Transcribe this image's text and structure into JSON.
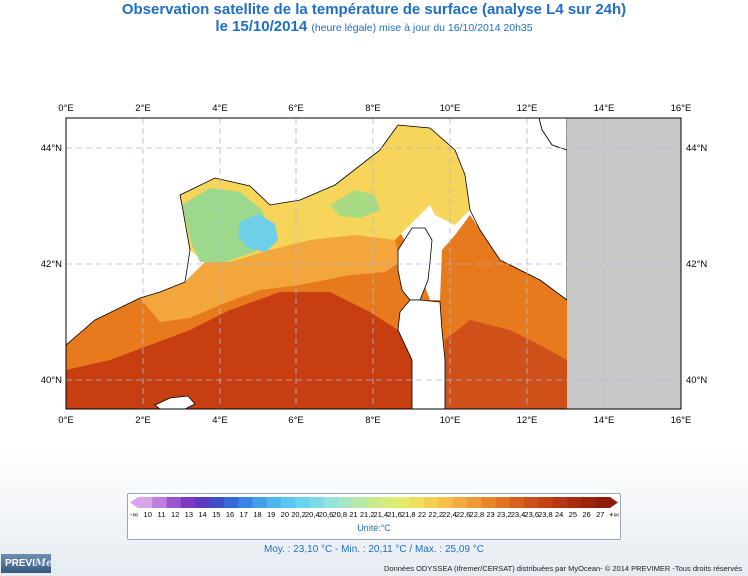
{
  "header": {
    "title": "Observation satellite de la température de surface (analyse L4 sur 24h)",
    "date_prefix": "le 15/10/2014",
    "date_note": "(heure légale) mise à jour du 16/10/2014 20h35"
  },
  "map": {
    "lon_labels": [
      "0°E",
      "2°E",
      "4°E",
      "6°E",
      "8°E",
      "10°E",
      "12°E",
      "14°E",
      "16°E"
    ],
    "lat_labels": [
      "40°N",
      "42°N",
      "44°N"
    ],
    "colors": {
      "land": "#c8c8c8",
      "title": "#1f6fc4",
      "sst_warmest": "#c23a0e",
      "sst_warm": "#e0741c",
      "sst_mid": "#f2a53a",
      "sst_cool": "#f7d75a",
      "sst_cold": "#9bd98a",
      "sst_coldest": "#6fcfe8"
    }
  },
  "legend": {
    "labels": [
      "-∞",
      "10",
      "11",
      "12",
      "13",
      "14",
      "15",
      "16",
      "17",
      "18",
      "19",
      "20",
      "20,2",
      "20,4",
      "20,6",
      "20,8",
      "21",
      "21,2",
      "21,4",
      "21,6",
      "21,8",
      "22",
      "22,2",
      "22,4",
      "22,6",
      "22,8",
      "23",
      "23,2",
      "23,4",
      "23,6",
      "23,8",
      "24",
      "25",
      "26",
      "27",
      "+∞"
    ],
    "unit": "Unité:°C"
  },
  "stats": "Moy. : 23,10 °C  -  Min. : 20,11 °C / Max. : 25,09 °C",
  "logo": {
    "a": "PREVI",
    "b": "Mer"
  },
  "credits": "Données ODYSSEA (Ifremer/CERSAT) distribuées par MyOcean- © 2014 PREVIMER -Tous droits réservés"
}
